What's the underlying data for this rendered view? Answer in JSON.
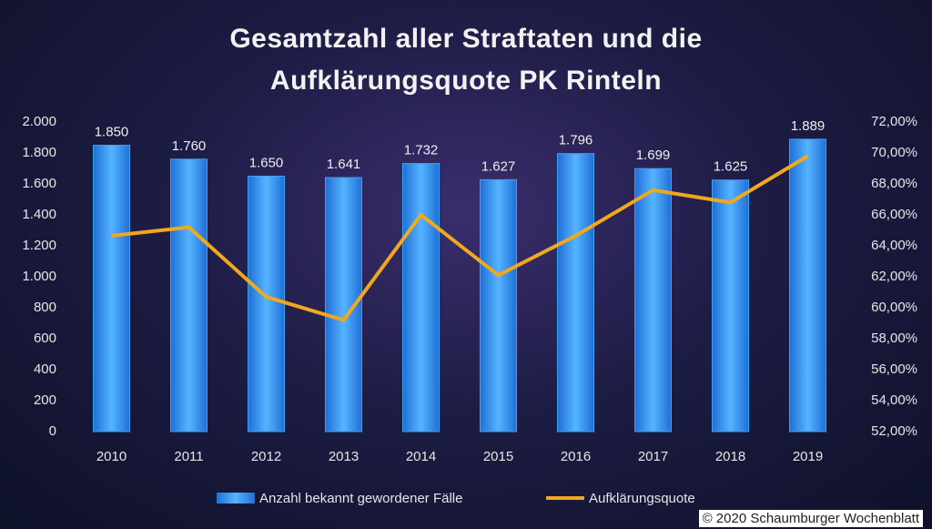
{
  "chart_data": {
    "type": "bar-line",
    "title": "Gesamtzahl aller Straftaten und die Aufklärungsquote PK Rinteln",
    "categories": [
      "2010",
      "2011",
      "2012",
      "2013",
      "2014",
      "2015",
      "2016",
      "2017",
      "2018",
      "2019"
    ],
    "series": [
      {
        "name": "Anzahl bekannt gewordener Fälle",
        "type": "bar",
        "color": "#3ea2f2",
        "values": [
          1850,
          1760,
          1650,
          1641,
          1732,
          1627,
          1796,
          1699,
          1625,
          1889
        ],
        "value_labels": [
          "1.850",
          "1.760",
          "1.650",
          "1.641",
          "1.732",
          "1.627",
          "1.796",
          "1.699",
          "1.625",
          "1.889"
        ]
      },
      {
        "name": "Aufklärungsquote",
        "type": "line",
        "axis": "y2",
        "color": "#f2a81d",
        "values": [
          64.65,
          65.2,
          60.7,
          59.2,
          66.0,
          62.1,
          64.65,
          67.6,
          66.8,
          69.8
        ]
      }
    ],
    "ylim": [
      0,
      2000
    ],
    "yticks": [
      0,
      200,
      400,
      600,
      800,
      {
        "value": 1000,
        "label": "1.000"
      },
      {
        "value": 1200,
        "label": "1.200"
      },
      {
        "value": 1400,
        "label": "1.400"
      },
      {
        "value": 1600,
        "label": "1.600"
      },
      {
        "value": 1800,
        "label": "1.800"
      },
      {
        "value": 2000,
        "label": "2.000"
      }
    ],
    "y2lim": [
      52,
      72
    ],
    "y2ticks": [
      {
        "value": 52,
        "label": "52,00%"
      },
      {
        "value": 54,
        "label": "54,00%"
      },
      {
        "value": 56,
        "label": "56,00%"
      },
      {
        "value": 58,
        "label": "58,00%"
      },
      {
        "value": 60,
        "label": "60,00%"
      },
      {
        "value": 62,
        "label": "62,00%"
      },
      {
        "value": 64,
        "label": "64,00%"
      },
      {
        "value": 66,
        "label": "66,00%"
      },
      {
        "value": 68,
        "label": "68,00%"
      },
      {
        "value": 70,
        "label": "70,00%"
      },
      {
        "value": 72,
        "label": "72,00%"
      }
    ],
    "grid": false,
    "legend": "bottom",
    "source": "© 2020 Schaumburger Wochenblatt"
  }
}
